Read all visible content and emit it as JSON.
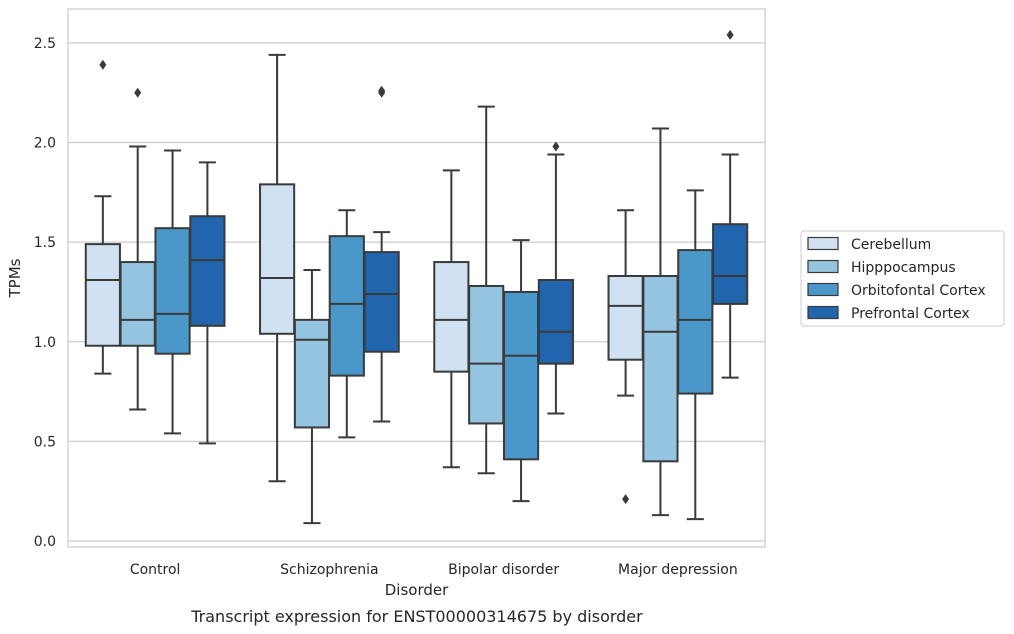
{
  "caption": "Transcript expression for ENST00000314675 by disorder",
  "chart_data": {
    "type": "box",
    "xlabel": "Disorder",
    "ylabel": "TPMs",
    "ylim": [
      -0.03,
      2.67
    ],
    "yticks": [
      0.0,
      0.5,
      1.0,
      1.5,
      2.0,
      2.5
    ],
    "ytick_labels": [
      "0.0",
      "0.5",
      "1.0",
      "1.5",
      "2.0",
      "2.5"
    ],
    "grid": "horizontal",
    "legend_position": "right",
    "categories": [
      "Control",
      "Schizophrenia",
      "Bipolar disorder",
      "Major depression"
    ],
    "series": [
      {
        "name": "Cerebellum",
        "color": "#d0e1f2",
        "boxes": [
          {
            "whisker_low": 0.84,
            "q1": 0.98,
            "median": 1.31,
            "q3": 1.49,
            "whisker_high": 1.73,
            "outliers": [
              2.39
            ]
          },
          {
            "whisker_low": 0.3,
            "q1": 1.04,
            "median": 1.32,
            "q3": 1.79,
            "whisker_high": 2.44,
            "outliers": []
          },
          {
            "whisker_low": 0.37,
            "q1": 0.85,
            "median": 1.11,
            "q3": 1.4,
            "whisker_high": 1.86,
            "outliers": []
          },
          {
            "whisker_low": 0.73,
            "q1": 0.91,
            "median": 1.18,
            "q3": 1.33,
            "whisker_high": 1.66,
            "outliers": [
              0.21
            ]
          }
        ]
      },
      {
        "name": "Hipppocampus",
        "color": "#94c4df",
        "boxes": [
          {
            "whisker_low": 0.66,
            "q1": 0.98,
            "median": 1.11,
            "q3": 1.4,
            "whisker_high": 1.98,
            "outliers": [
              2.25
            ]
          },
          {
            "whisker_low": 0.09,
            "q1": 0.57,
            "median": 1.01,
            "q3": 1.11,
            "whisker_high": 1.36,
            "outliers": []
          },
          {
            "whisker_low": 0.34,
            "q1": 0.59,
            "median": 0.89,
            "q3": 1.28,
            "whisker_high": 2.18,
            "outliers": []
          },
          {
            "whisker_low": 0.13,
            "q1": 0.4,
            "median": 1.05,
            "q3": 1.33,
            "whisker_high": 2.07,
            "outliers": []
          }
        ]
      },
      {
        "name": "Orbitofontal Cortex",
        "color": "#4a98c9",
        "boxes": [
          {
            "whisker_low": 0.54,
            "q1": 0.94,
            "median": 1.14,
            "q3": 1.57,
            "whisker_high": 1.96,
            "outliers": []
          },
          {
            "whisker_low": 0.52,
            "q1": 0.83,
            "median": 1.19,
            "q3": 1.53,
            "whisker_high": 1.66,
            "outliers": []
          },
          {
            "whisker_low": 0.2,
            "q1": 0.41,
            "median": 0.93,
            "q3": 1.25,
            "whisker_high": 1.51,
            "outliers": []
          },
          {
            "whisker_low": 0.11,
            "q1": 0.74,
            "median": 1.11,
            "q3": 1.46,
            "whisker_high": 1.76,
            "outliers": []
          }
        ]
      },
      {
        "name": "Prefrontal Cortex",
        "color": "#2166ac",
        "boxes": [
          {
            "whisker_low": 0.49,
            "q1": 1.08,
            "median": 1.41,
            "q3": 1.63,
            "whisker_high": 1.9,
            "outliers": []
          },
          {
            "whisker_low": 0.6,
            "q1": 0.95,
            "median": 1.24,
            "q3": 1.45,
            "whisker_high": 1.55,
            "outliers": [
              2.25,
              2.26
            ]
          },
          {
            "whisker_low": 0.64,
            "q1": 0.89,
            "median": 1.05,
            "q3": 1.31,
            "whisker_high": 1.94,
            "outliers": [
              1.98
            ]
          },
          {
            "whisker_low": 0.82,
            "q1": 1.19,
            "median": 1.33,
            "q3": 1.59,
            "whisker_high": 1.94,
            "outliers": [
              2.54
            ]
          }
        ]
      }
    ]
  }
}
